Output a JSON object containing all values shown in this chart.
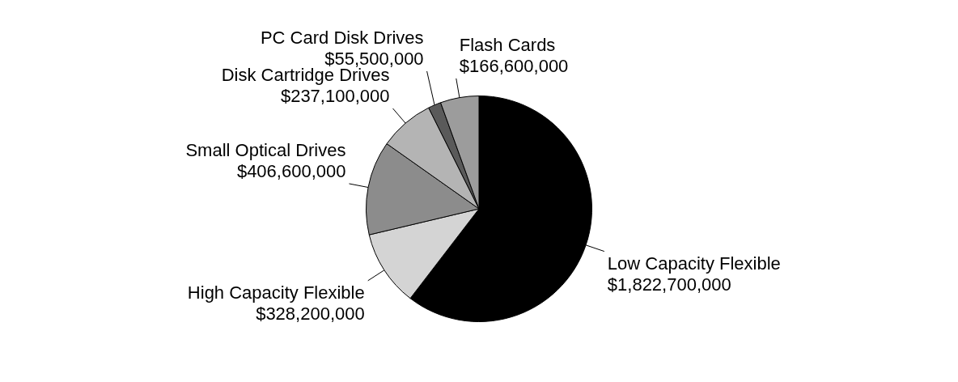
{
  "chart_data": {
    "type": "pie",
    "categories": [
      "Low Capacity Flexible",
      "High Capacity Flexible",
      "Small Optical Drives",
      "Disk Cartridge Drives",
      "PC Card Disk Drives",
      "Flash Cards"
    ],
    "values": [
      1822700000,
      328200000,
      406600000,
      237100000,
      55500000,
      166600000
    ],
    "value_labels": [
      "$1,822,700,000",
      "$328,200,000",
      "$406,600,000",
      "$237,100,000",
      "$55,500,000",
      "$166,600,000"
    ],
    "colors": [
      "#000000",
      "#d4d4d4",
      "#8c8c8c",
      "#b4b4b4",
      "#5a5a5a",
      "#9c9c9c"
    ],
    "legend": false
  }
}
